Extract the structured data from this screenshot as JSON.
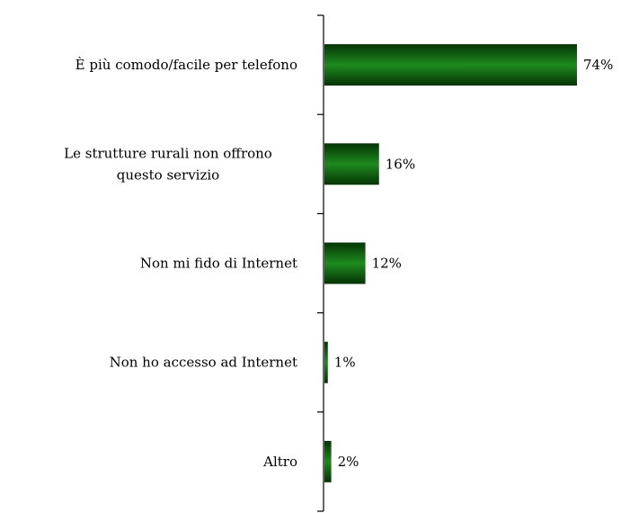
{
  "chart_data": {
    "type": "bar",
    "orientation": "horizontal",
    "categories": [
      [
        "È più comodo/facile per telefono"
      ],
      [
        "Le strutture rurali non offrono",
        "questo servizio"
      ],
      [
        "Non mi fido di Internet"
      ],
      [
        "Non ho accesso ad Internet"
      ],
      [
        "Altro"
      ]
    ],
    "values": [
      74,
      16,
      12,
      1,
      2
    ],
    "value_labels": [
      "74%",
      "16%",
      "12%",
      "1%",
      "2%"
    ],
    "title": "",
    "xlabel": "",
    "ylabel": "",
    "xlim": [
      0,
      74
    ],
    "grid": false,
    "legend": "none",
    "bar_color": "#0f6a0f",
    "bar_color_dark": "#053305",
    "bar_color_light": "#1e8a1e"
  }
}
